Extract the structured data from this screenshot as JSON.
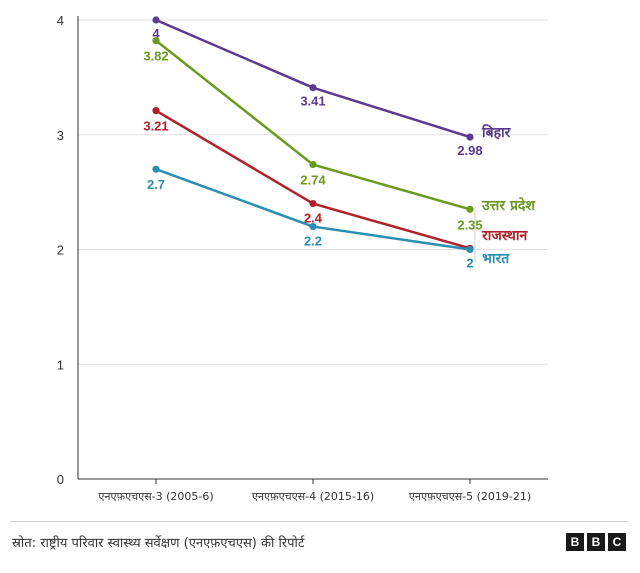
{
  "chart_data": {
    "type": "line",
    "x": [
      "एनएफ़एचएस-3 (2005-6)",
      "एनएफ़एचएस-4 (2015-16)",
      "एनएफ़एचएस-5 (2019-21)"
    ],
    "ylim": [
      0,
      4
    ],
    "yticks": [
      "0",
      "1",
      "2",
      "3",
      "4"
    ],
    "grid": true,
    "series": [
      {
        "name": "बिहार",
        "values": [
          4,
          3.41,
          2.98
        ],
        "labels": [
          "4",
          "3.41",
          "2.98"
        ],
        "color": "#5b3a92"
      },
      {
        "name": "उत्तर प्रदेश",
        "values": [
          3.82,
          2.74,
          2.35
        ],
        "labels": [
          "3.82",
          "2.74",
          "2.35"
        ],
        "color": "#6b9a20"
      },
      {
        "name": "राजस्थान",
        "values": [
          3.21,
          2.4,
          2.01
        ],
        "labels": [
          "3.21",
          "2.4",
          ""
        ],
        "color": "#b0222a"
      },
      {
        "name": "भारत",
        "values": [
          2.7,
          2.2,
          2
        ],
        "labels": [
          "2.7",
          "2.2",
          "2"
        ],
        "color": "#2a8fb0"
      }
    ]
  },
  "footer": {
    "source": "स्रोत: राष्ट्रीय परिवार स्वास्थ्य सर्वेक्षण (एनएफ़एचएस) की रिपोर्ट",
    "logo_letters": [
      "B",
      "B",
      "C"
    ]
  }
}
